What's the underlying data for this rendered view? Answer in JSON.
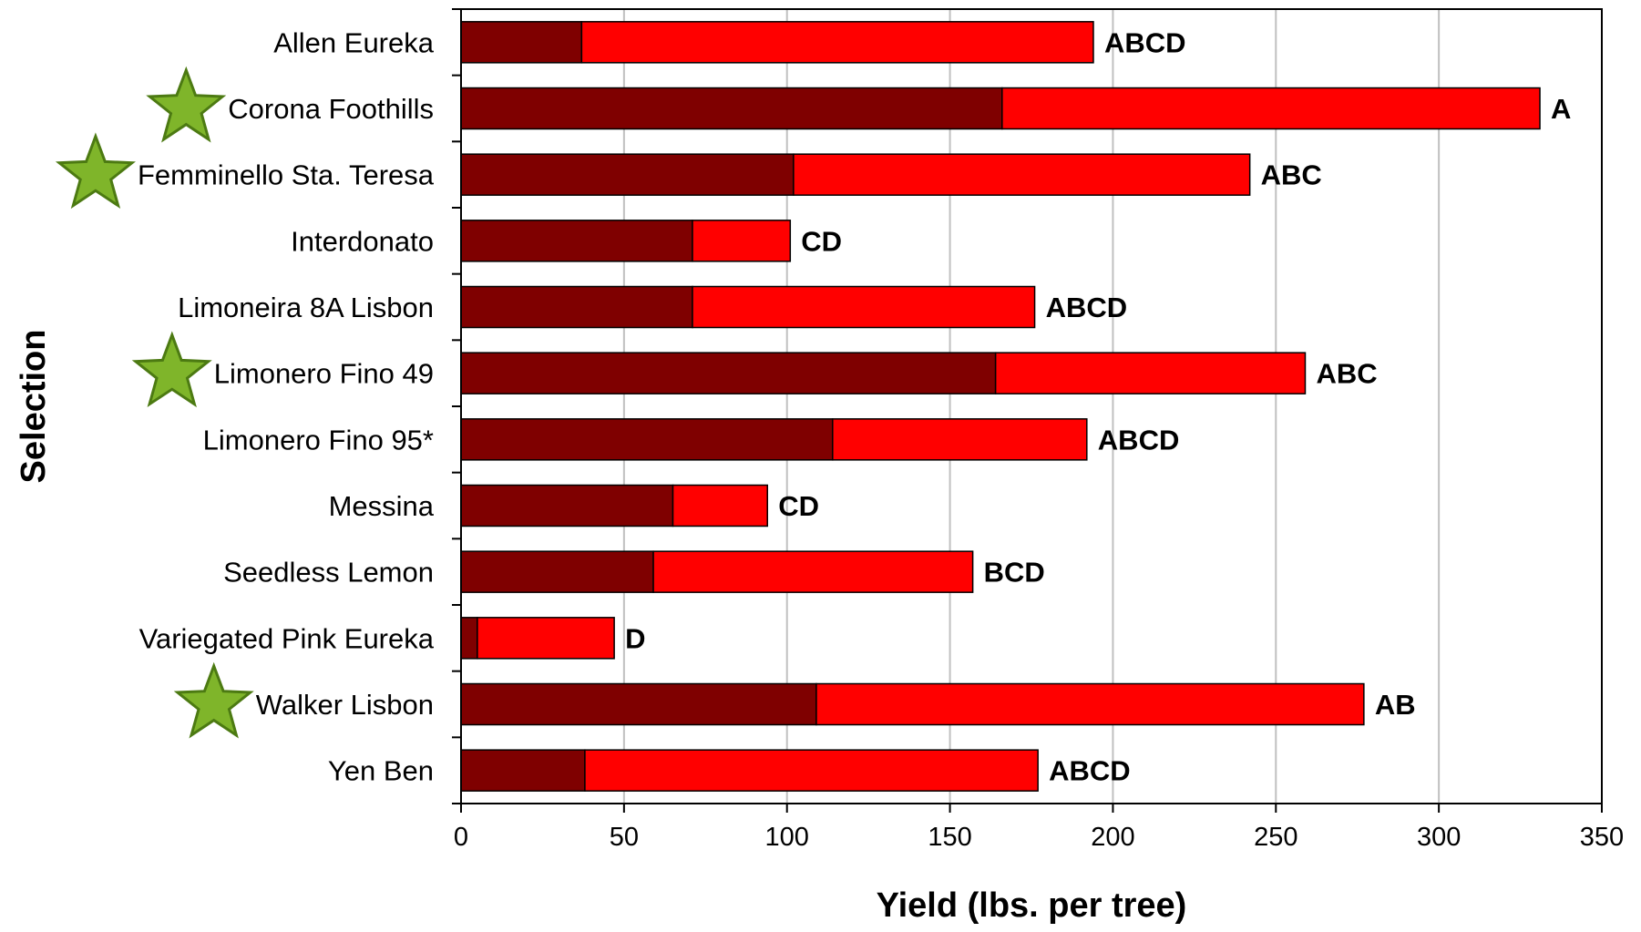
{
  "chart_data": {
    "type": "bar",
    "orientation": "horizontal",
    "stacked": true,
    "xlabel": "Yield (lbs. per tree)",
    "ylabel": "Selection",
    "xlim": [
      0,
      350
    ],
    "x_ticks": [
      0,
      50,
      100,
      150,
      200,
      250,
      300,
      350
    ],
    "grid": "vertical",
    "categories": [
      "Allen Eureka",
      "Corona Foothills",
      "Femminello Sta. Teresa",
      "Interdonato",
      "Limoneira 8A Lisbon",
      "Limonero Fino 49",
      "Limonero Fino 95*",
      "Messina",
      "Seedless Lemon",
      "Variegated Pink Eureka",
      "Walker Lisbon",
      "Yen Ben"
    ],
    "series": [
      {
        "color": "#7f0000",
        "values": [
          37,
          166,
          102,
          71,
          71,
          164,
          114,
          65,
          59,
          5,
          109,
          38
        ]
      },
      {
        "color": "#ff0000",
        "values": [
          157,
          165,
          140,
          30,
          105,
          95,
          78,
          29,
          98,
          42,
          168,
          139
        ]
      }
    ],
    "annotations": [
      "ABCD",
      "A",
      "ABC",
      "CD",
      "ABCD",
      "ABC",
      "ABCD",
      "CD",
      "BCD",
      "D",
      "AB",
      "ABCD"
    ],
    "starred": [
      "Corona Foothills",
      "Femminello Sta. Teresa",
      "Limonero Fino 49",
      "Walker Lisbon"
    ],
    "star_color": "#7fb52a"
  }
}
